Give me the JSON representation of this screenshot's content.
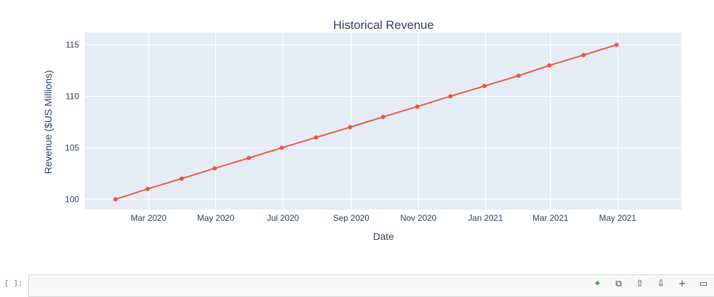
{
  "chart_data": {
    "type": "line",
    "title": "Historical Revenue",
    "xlabel": "Date",
    "ylabel": "Revenue ($US Millions)",
    "x": [
      "2020-01-31",
      "2020-02-29",
      "2020-03-31",
      "2020-04-30",
      "2020-05-31",
      "2020-06-30",
      "2020-07-31",
      "2020-08-31",
      "2020-09-30",
      "2020-10-31",
      "2020-11-30",
      "2020-12-31",
      "2021-01-31",
      "2021-02-28",
      "2021-03-31",
      "2021-04-30"
    ],
    "series": [
      {
        "values": [
          100,
          101,
          102,
          103,
          104,
          105,
          106,
          107,
          108,
          109,
          110,
          111,
          112,
          113,
          114,
          115
        ],
        "color": "#EF553B"
      }
    ],
    "x_ticks": [
      {
        "date": "2020-03-01",
        "label": "Mar 2020"
      },
      {
        "date": "2020-05-01",
        "label": "May 2020"
      },
      {
        "date": "2020-07-01",
        "label": "Jul 2020"
      },
      {
        "date": "2020-09-01",
        "label": "Sep 2020"
      },
      {
        "date": "2020-11-01",
        "label": "Nov 2020"
      },
      {
        "date": "2021-01-01",
        "label": "Jan 2021"
      },
      {
        "date": "2021-03-01",
        "label": "Mar 2021"
      },
      {
        "date": "2021-05-01",
        "label": "May 2021"
      }
    ],
    "y_ticks": [
      100,
      105,
      110,
      115
    ],
    "xlim": [
      "2020-01-03",
      "2021-06-28"
    ],
    "ylim": [
      99.0,
      116.2
    ],
    "grid": true,
    "background_color": "#E5ECF6",
    "grid_color": "#ffffff",
    "text_color": "#2a3f5f"
  },
  "notebook": {
    "cell_prompt": "[ ]:",
    "toolbar_icons": [
      "sparkle-icon",
      "copy-icon",
      "move-up-icon",
      "move-down-icon",
      "add-icon",
      "delete-icon"
    ]
  }
}
